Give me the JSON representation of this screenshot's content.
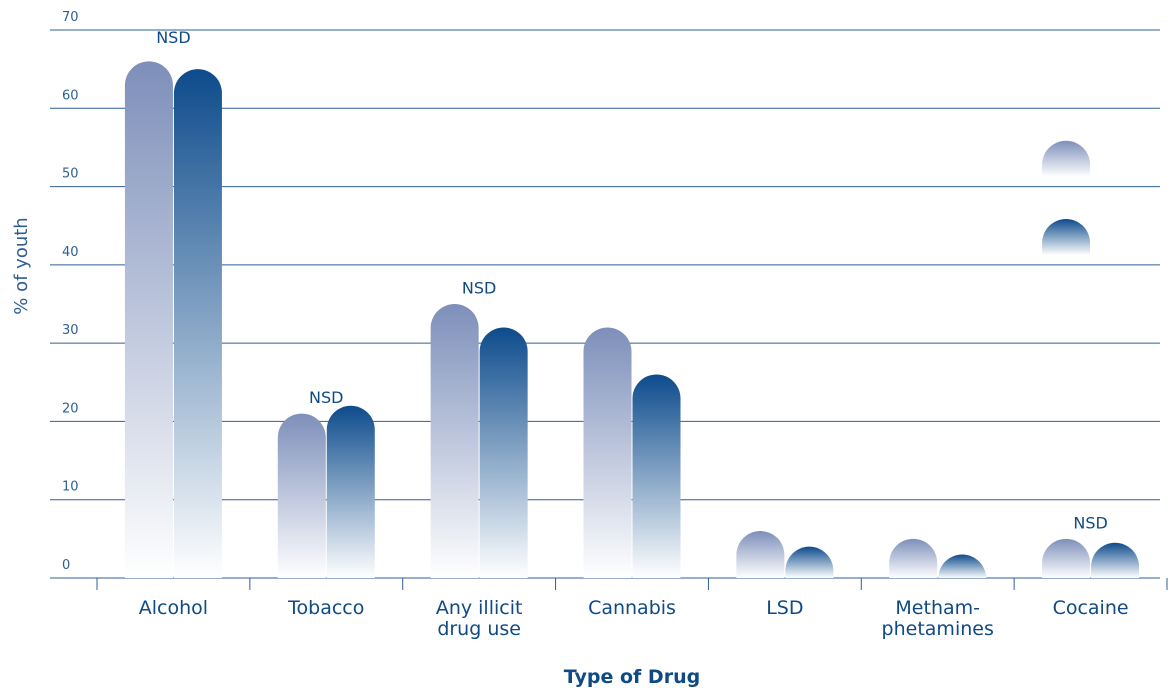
{
  "chart_data": {
    "type": "bar",
    "title": "",
    "xlabel": "Type of Drug",
    "ylabel": "% of youth",
    "ylim": [
      0,
      70
    ],
    "yticks": [
      0,
      10,
      20,
      30,
      40,
      50,
      60,
      70
    ],
    "grid": true,
    "legend": "none",
    "categories": [
      [
        "Alcohol"
      ],
      [
        "Tobacco"
      ],
      [
        "Any illicit",
        "drug use"
      ],
      [
        "Cannabis"
      ],
      [
        "LSD"
      ],
      [
        "Metham-",
        "phetamines"
      ],
      [
        "Cocaine"
      ]
    ],
    "series": [
      {
        "values": [
          66,
          21,
          35,
          32,
          6,
          5,
          5
        ],
        "color": "#7d8fba"
      },
      {
        "values": [
          65,
          22,
          32,
          26,
          4,
          3,
          4.5
        ],
        "color": "#0d4b8c"
      }
    ],
    "floating_markers": [
      {
        "series": 0,
        "value": 51
      },
      {
        "series": 1,
        "value": 41
      }
    ],
    "annotations": [
      {
        "category_index": 0,
        "text": "NSD",
        "value": 70
      },
      {
        "category_index": 1,
        "text": "NSD",
        "value": 24
      },
      {
        "category_index": 2,
        "text": "NSD",
        "value": 38
      },
      {
        "category_index": 6,
        "text": "NSD",
        "value": 8
      }
    ],
    "colors": {
      "light_series": "#7d8fba",
      "dark_series": "#0d4b8c",
      "gridline": "#2e5f94",
      "text": "#0f4a85"
    }
  }
}
